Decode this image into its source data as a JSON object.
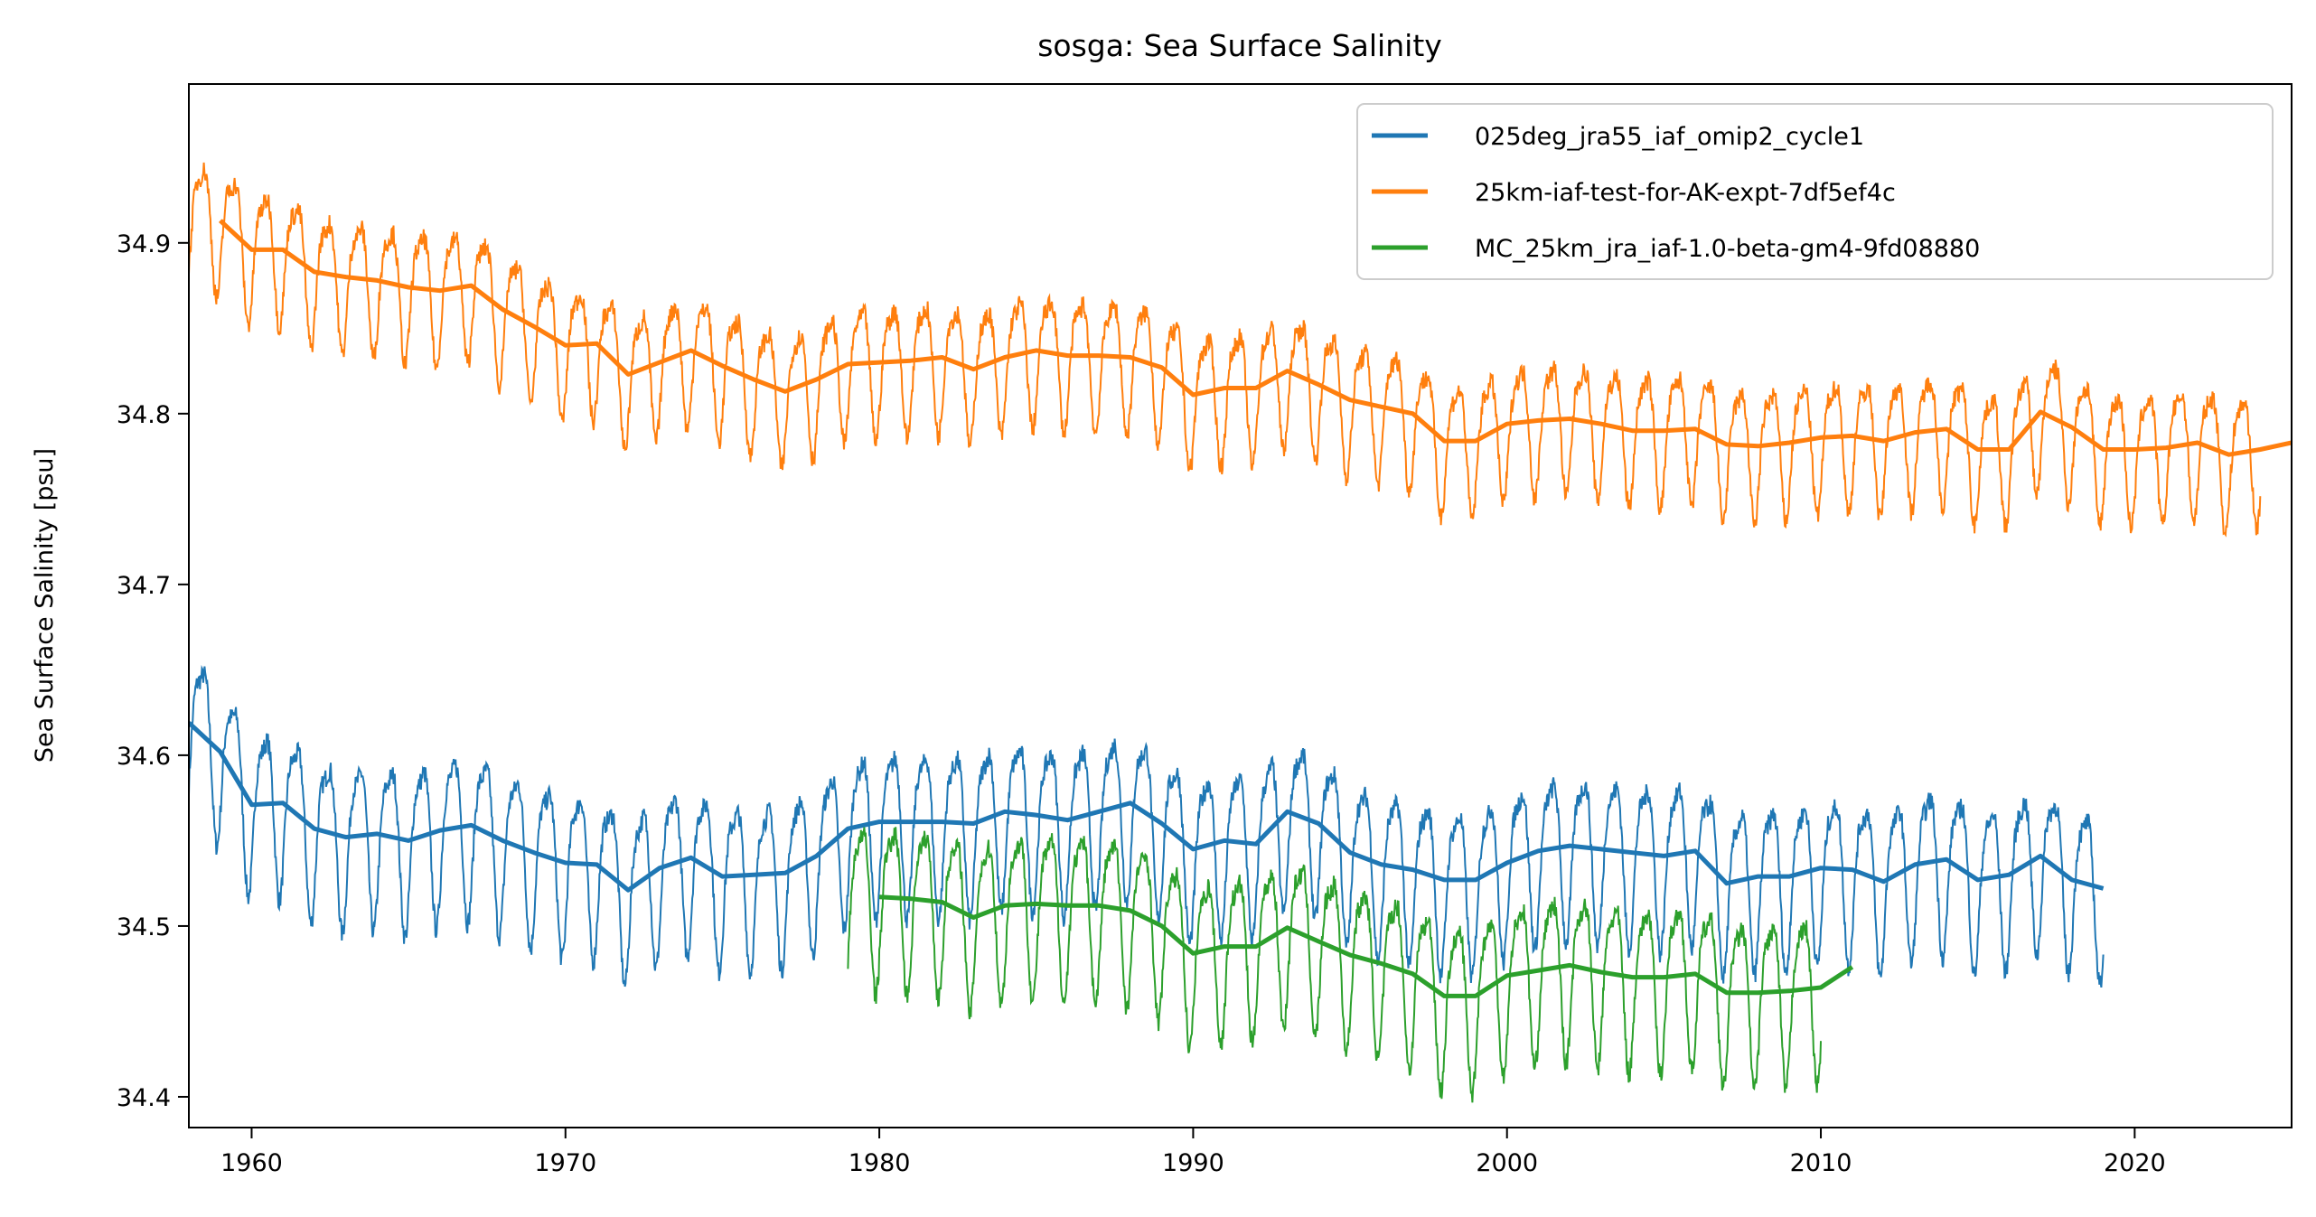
{
  "chart_data": {
    "type": "line",
    "title": "sosga: Sea Surface Salinity",
    "xlabel": "",
    "ylabel": "Sea Surface Salinity [psu]",
    "xlim": [
      1958,
      2025
    ],
    "ylim": [
      34.382,
      34.993
    ],
    "xticks": [
      "1960",
      "1970",
      "1980",
      "1990",
      "2000",
      "2010",
      "2020"
    ],
    "yticks": [
      "34.4",
      "34.5",
      "34.6",
      "34.7",
      "34.8",
      "34.9"
    ],
    "grid": false,
    "legend_position": "top-right",
    "series": [
      {
        "name": "025deg_jra55_iaf_omip2_cycle1",
        "color": "#1f77b4",
        "monthly_range": [
          1958,
          2019
        ],
        "seasonal_amplitude": 0.05,
        "annual_years": [
          1958,
          1959,
          1960,
          1961,
          1962,
          1963,
          1964,
          1965,
          1966,
          1967,
          1968,
          1969,
          1970,
          1971,
          1972,
          1973,
          1974,
          1975,
          1976,
          1977,
          1978,
          1979,
          1980,
          1981,
          1982,
          1983,
          1984,
          1985,
          1986,
          1987,
          1988,
          1989,
          1990,
          1991,
          1992,
          1993,
          1994,
          1995,
          1996,
          1997,
          1998,
          1999,
          2000,
          2001,
          2002,
          2003,
          2004,
          2005,
          2006,
          2007,
          2008,
          2009,
          2010,
          2011,
          2012,
          2013,
          2014,
          2015,
          2016,
          2017,
          2018,
          2019
        ],
        "annual_mean": [
          34.619,
          34.602,
          34.571,
          34.572,
          34.557,
          34.552,
          34.554,
          34.55,
          34.556,
          34.559,
          34.55,
          34.543,
          34.537,
          34.536,
          34.521,
          34.534,
          34.54,
          34.529,
          34.53,
          34.531,
          34.541,
          34.557,
          34.561,
          34.561,
          34.561,
          34.56,
          34.567,
          34.565,
          34.562,
          34.567,
          34.572,
          34.56,
          34.545,
          34.55,
          34.548,
          34.567,
          34.56,
          34.543,
          34.536,
          34.533,
          34.527,
          34.527,
          34.537,
          34.544,
          34.547,
          34.545,
          34.543,
          34.541,
          34.544,
          34.525,
          34.529,
          34.529,
          34.534,
          34.533,
          34.526,
          34.536,
          34.539,
          34.527,
          34.53,
          34.541,
          34.527,
          34.522
        ]
      },
      {
        "name": "25km-iaf-test-for-AK-expt-7df5ef4c",
        "color": "#ff7f0e",
        "monthly_range": [
          1958,
          2024
        ],
        "seasonal_amplitude": 0.04,
        "annual_years": [
          1959,
          1960,
          1961,
          1962,
          1963,
          1964,
          1965,
          1966,
          1967,
          1968,
          1969,
          1970,
          1971,
          1972,
          1973,
          1974,
          1975,
          1976,
          1977,
          1978,
          1979,
          1980,
          1981,
          1982,
          1983,
          1984,
          1985,
          1986,
          1987,
          1988,
          1989,
          1990,
          1991,
          1992,
          1993,
          1994,
          1995,
          1996,
          1997,
          1998,
          1999,
          2000,
          2001,
          2002,
          2003,
          2004,
          2005,
          2006,
          2007,
          2008,
          2009,
          2010,
          2011,
          2012,
          2013,
          2014,
          2015,
          2016,
          2017,
          2018,
          2019,
          2020,
          2021,
          2022,
          2023,
          2024,
          2025
        ],
        "annual_mean": [
          34.913,
          34.896,
          34.896,
          34.883,
          34.88,
          34.878,
          34.874,
          34.872,
          34.875,
          34.861,
          34.851,
          34.84,
          34.841,
          34.823,
          34.83,
          34.837,
          34.828,
          34.82,
          34.813,
          34.82,
          34.829,
          34.83,
          34.831,
          34.833,
          34.826,
          34.833,
          34.837,
          34.834,
          34.834,
          34.833,
          34.827,
          34.811,
          34.815,
          34.815,
          34.825,
          34.817,
          34.808,
          34.804,
          34.8,
          34.784,
          34.784,
          34.794,
          34.796,
          34.797,
          34.794,
          34.79,
          34.79,
          34.791,
          34.782,
          34.781,
          34.783,
          34.786,
          34.787,
          34.784,
          34.789,
          34.791,
          34.779,
          34.779,
          34.801,
          34.792,
          34.779,
          34.779,
          34.78,
          34.783,
          34.776,
          34.779,
          34.783
        ]
      },
      {
        "name": "MC_25km_jra_iaf-1.0-beta-gm4-9fd08880",
        "color": "#2ca02c",
        "monthly_range": [
          1979,
          2010
        ],
        "seasonal_amplitude": 0.05,
        "annual_years": [
          1980,
          1981,
          1982,
          1983,
          1984,
          1985,
          1986,
          1987,
          1988,
          1989,
          1990,
          1991,
          1992,
          1993,
          1994,
          1995,
          1996,
          1997,
          1998,
          1999,
          2000,
          2001,
          2002,
          2003,
          2004,
          2005,
          2006,
          2007,
          2008,
          2009,
          2010,
          2011
        ],
        "annual_mean": [
          34.517,
          34.516,
          34.514,
          34.505,
          34.512,
          34.513,
          34.512,
          34.512,
          34.509,
          34.5,
          34.484,
          34.488,
          34.488,
          34.499,
          34.491,
          34.483,
          34.478,
          34.472,
          34.459,
          34.459,
          34.471,
          34.474,
          34.477,
          34.473,
          34.47,
          34.47,
          34.472,
          34.461,
          34.461,
          34.462,
          34.464,
          34.476
        ]
      }
    ]
  }
}
